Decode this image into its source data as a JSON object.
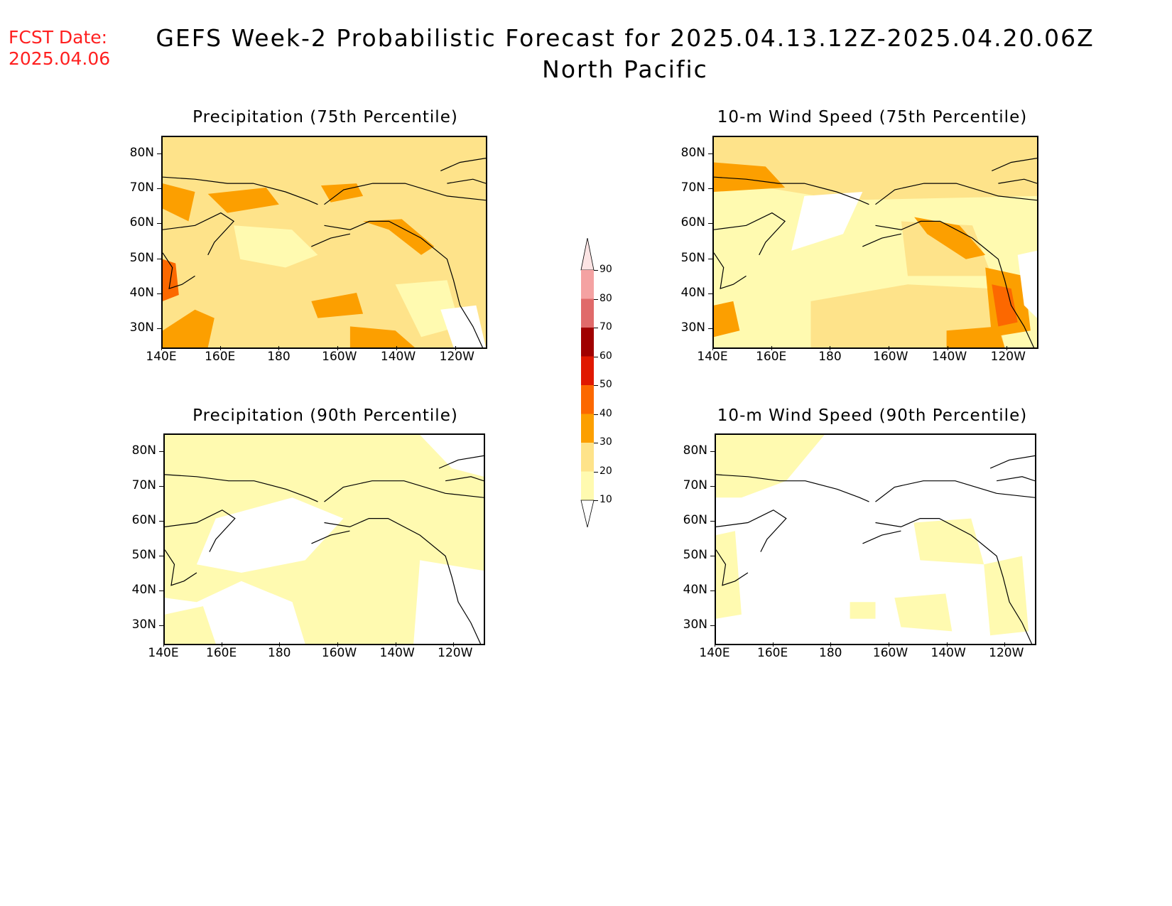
{
  "header": {
    "fcst_line1": "FCST Date:",
    "fcst_line2": "2025.04.06",
    "title_line1": "GEFS Week-2 Probabilistic Forecast for 2025.04.13.12Z-2025.04.20.06Z",
    "title_line2": "North Pacific"
  },
  "panels": [
    {
      "title": "Precipitation (75th Percentile)",
      "base_color": "#fee38a"
    },
    {
      "title": "10-m Wind Speed (75th Percentile)",
      "base_color": "#fffab0"
    },
    {
      "title": "Precipitation (90th Percentile)",
      "base_color": "#ffffff"
    },
    {
      "title": "10-m Wind Speed (90th Percentile)",
      "base_color": "#ffffff"
    }
  ],
  "axes": {
    "lon_labels": [
      "140E",
      "160E",
      "180",
      "160W",
      "140W",
      "120W"
    ],
    "lat_labels": [
      "80N",
      "70N",
      "60N",
      "50N",
      "40N",
      "30N"
    ]
  },
  "colorbar": {
    "levels": [
      "10",
      "20",
      "30",
      "40",
      "50",
      "60",
      "70",
      "80",
      "90"
    ],
    "colors": [
      "#fffab0",
      "#fee38a",
      "#fc9f00",
      "#fc6800",
      "#e01800",
      "#a00000",
      "#e06a6a",
      "#f4a2a2",
      "#fce4e4"
    ]
  },
  "chart_data": [
    {
      "type": "heatmap",
      "title": "Precipitation (75th Percentile)",
      "x_range": [
        "140E",
        "110W"
      ],
      "y_range": [
        "25N",
        "85N"
      ],
      "legend": "center",
      "ylabel": "",
      "xlabel": ""
    },
    {
      "type": "heatmap",
      "title": "10-m Wind Speed (75th Percentile)",
      "x_range": [
        "140E",
        "110W"
      ],
      "y_range": [
        "25N",
        "85N"
      ],
      "legend": "center"
    },
    {
      "type": "heatmap",
      "title": "Precipitation (90th Percentile)",
      "x_range": [
        "140E",
        "110W"
      ],
      "y_range": [
        "25N",
        "85N"
      ],
      "legend": "center"
    },
    {
      "type": "heatmap",
      "title": "10-m Wind Speed (90th Percentile)",
      "x_range": [
        "140E",
        "110W"
      ],
      "y_range": [
        "25N",
        "85N"
      ],
      "legend": "center"
    }
  ]
}
